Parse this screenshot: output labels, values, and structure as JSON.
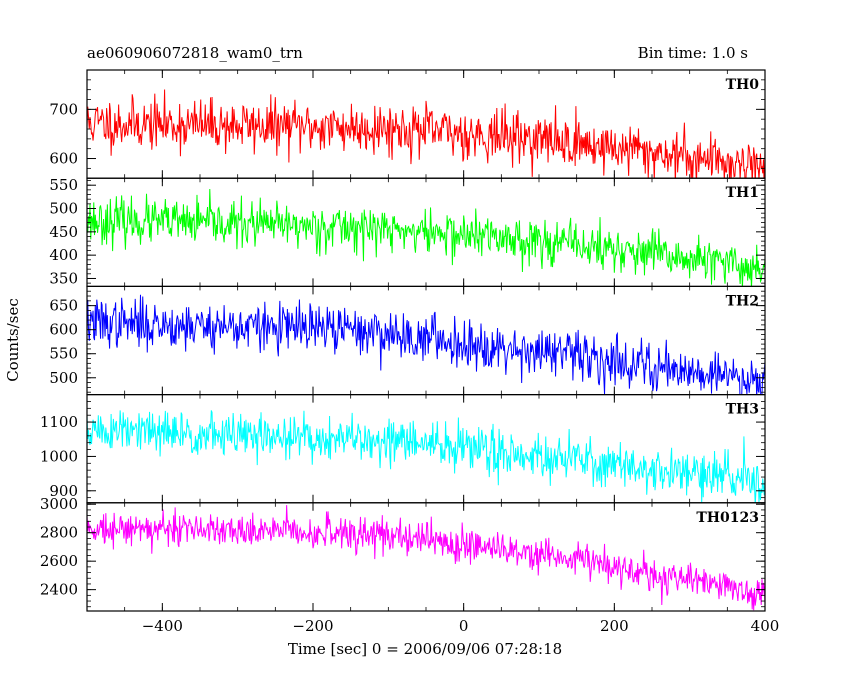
{
  "header": {
    "title": "ae060906072818_wam0_trn",
    "bin_time": "Bin time: 1.0 s"
  },
  "chart_data": {
    "type": "line",
    "xlabel": "Time [sec] 0 = 2006/09/06 07:28:18",
    "ylabel": "Counts/sec",
    "xlim": [
      -500,
      400
    ],
    "x_ticks": [
      -400,
      -200,
      0,
      200,
      400
    ],
    "x_step": 1,
    "grid": false,
    "panels": [
      {
        "name": "TH0",
        "color": "#ff0000",
        "ylim": [
          560,
          780
        ],
        "ticks": [
          600,
          700
        ],
        "trend_start": 672,
        "trend_end": 585,
        "noise": 26,
        "seed": 11,
        "knots": [
          [
            -500,
            672
          ],
          [
            -100,
            662
          ],
          [
            100,
            640
          ],
          [
            400,
            585
          ]
        ]
      },
      {
        "name": "TH1",
        "color": "#00ff00",
        "ylim": [
          333,
          565
        ],
        "ticks": [
          350,
          400,
          450,
          500,
          550
        ],
        "trend_start": 475,
        "trend_end": 370,
        "noise": 24,
        "seed": 23,
        "knots": [
          [
            -500,
            475
          ],
          [
            -150,
            460
          ],
          [
            100,
            432
          ],
          [
            400,
            370
          ]
        ]
      },
      {
        "name": "TH2",
        "color": "#0000ff",
        "ylim": [
          465,
          690
        ],
        "ticks": [
          500,
          550,
          600,
          650
        ],
        "trend_start": 615,
        "trend_end": 495,
        "noise": 25,
        "seed": 37,
        "knots": [
          [
            -500,
            615
          ],
          [
            -150,
            600
          ],
          [
            100,
            555
          ],
          [
            400,
            495
          ]
        ]
      },
      {
        "name": "TH3",
        "color": "#00ffff",
        "ylim": [
          865,
          1180
        ],
        "ticks": [
          900,
          1000,
          1100
        ],
        "trend_start": 1075,
        "trend_end": 925,
        "noise": 33,
        "seed": 51,
        "knots": [
          [
            -500,
            1075
          ],
          [
            -100,
            1045
          ],
          [
            50,
            1015
          ],
          [
            400,
            925
          ]
        ]
      },
      {
        "name": "TH0123",
        "color": "#ff00ff",
        "ylim": [
          2250,
          3010
        ],
        "ticks": [
          2400,
          2600,
          2800,
          3000
        ],
        "trend_start": 2840,
        "trend_end": 2370,
        "noise": 60,
        "seed": 73,
        "knots": [
          [
            -500,
            2840
          ],
          [
            -150,
            2800
          ],
          [
            50,
            2700
          ],
          [
            400,
            2370
          ]
        ]
      }
    ]
  }
}
